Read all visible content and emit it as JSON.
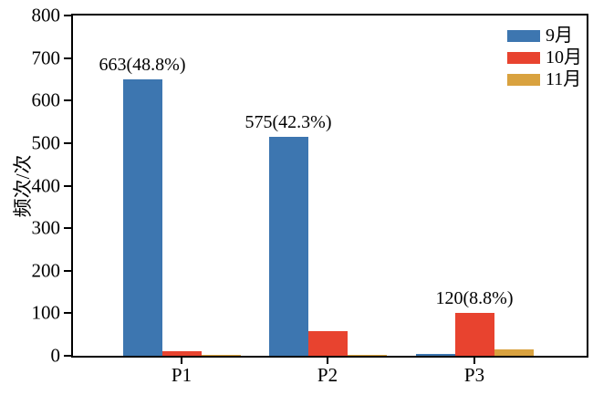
{
  "chart_data": {
    "type": "bar",
    "title": "",
    "xlabel": "",
    "ylabel": "频次/次",
    "categories": [
      "P1",
      "P2",
      "P3"
    ],
    "series": [
      {
        "name": "9月",
        "color": "#3d76b0",
        "values": [
          650,
          515,
          4
        ]
      },
      {
        "name": "10月",
        "color": "#e8432f",
        "values": [
          10,
          57,
          101
        ]
      },
      {
        "name": "11月",
        "color": "#d9a23f",
        "values": [
          3,
          3,
          15
        ]
      }
    ],
    "annotations": [
      {
        "text": "663(48.8%)",
        "category_index": 0,
        "series_index": 0
      },
      {
        "text": "575(42.3%)",
        "category_index": 1,
        "series_index": 0
      },
      {
        "text": "120(8.8%)",
        "category_index": 2,
        "series_index": 1
      }
    ],
    "y_axis": {
      "min": 0,
      "max": 800,
      "major_step": 100,
      "ticks": [
        0,
        100,
        200,
        300,
        400,
        500,
        600,
        700,
        800
      ]
    },
    "legend": {
      "position": "upper right"
    },
    "grid": false,
    "background_color": "#ffffff",
    "axis_color": "#000000"
  }
}
